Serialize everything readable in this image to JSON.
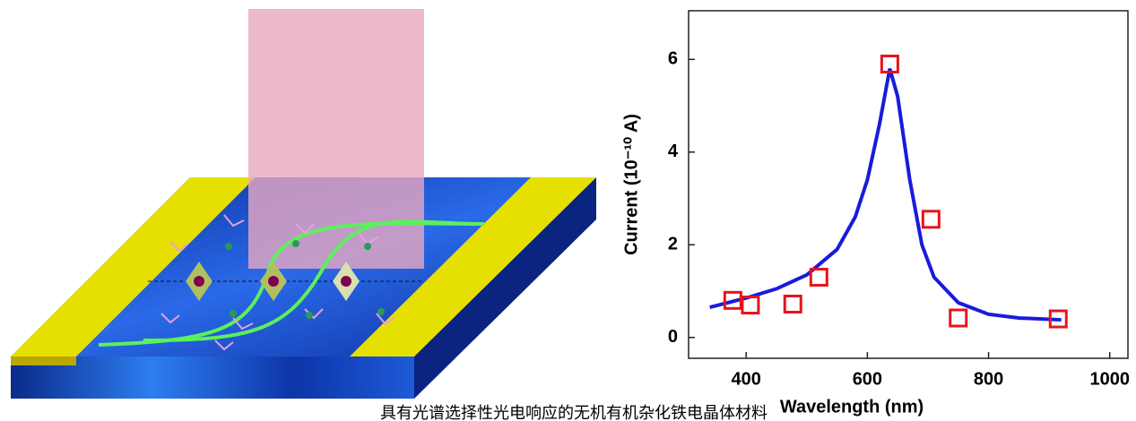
{
  "chart_data": {
    "type": "scatter",
    "xlabel": "Wavelength (nm)",
    "ylabel": "Current (10⁻¹⁰ A)",
    "caption": "具有光谱选择性光电响应的无机有机杂化铁电晶体材料",
    "x": [
      378,
      407,
      477,
      520,
      637,
      705,
      750,
      915
    ],
    "values": [
      0.8,
      0.7,
      0.72,
      1.3,
      5.9,
      2.55,
      0.42,
      0.4
    ],
    "color": "#e8141b",
    "fit": {
      "color": "#1a1adc",
      "x": [
        340,
        400,
        450,
        500,
        550,
        580,
        600,
        620,
        637,
        650,
        670,
        690,
        710,
        750,
        800,
        850,
        920
      ],
      "values": [
        0.65,
        0.85,
        1.05,
        1.35,
        1.9,
        2.6,
        3.4,
        4.6,
        5.8,
        5.2,
        3.4,
        2.0,
        1.3,
        0.75,
        0.5,
        0.42,
        0.38
      ]
    },
    "xlim": [
      305,
      1030
    ],
    "ylim": [
      -0.45,
      7.05
    ],
    "xticks": [
      400,
      600,
      800,
      1000
    ],
    "yticks": [
      0,
      2,
      4,
      6
    ]
  }
}
